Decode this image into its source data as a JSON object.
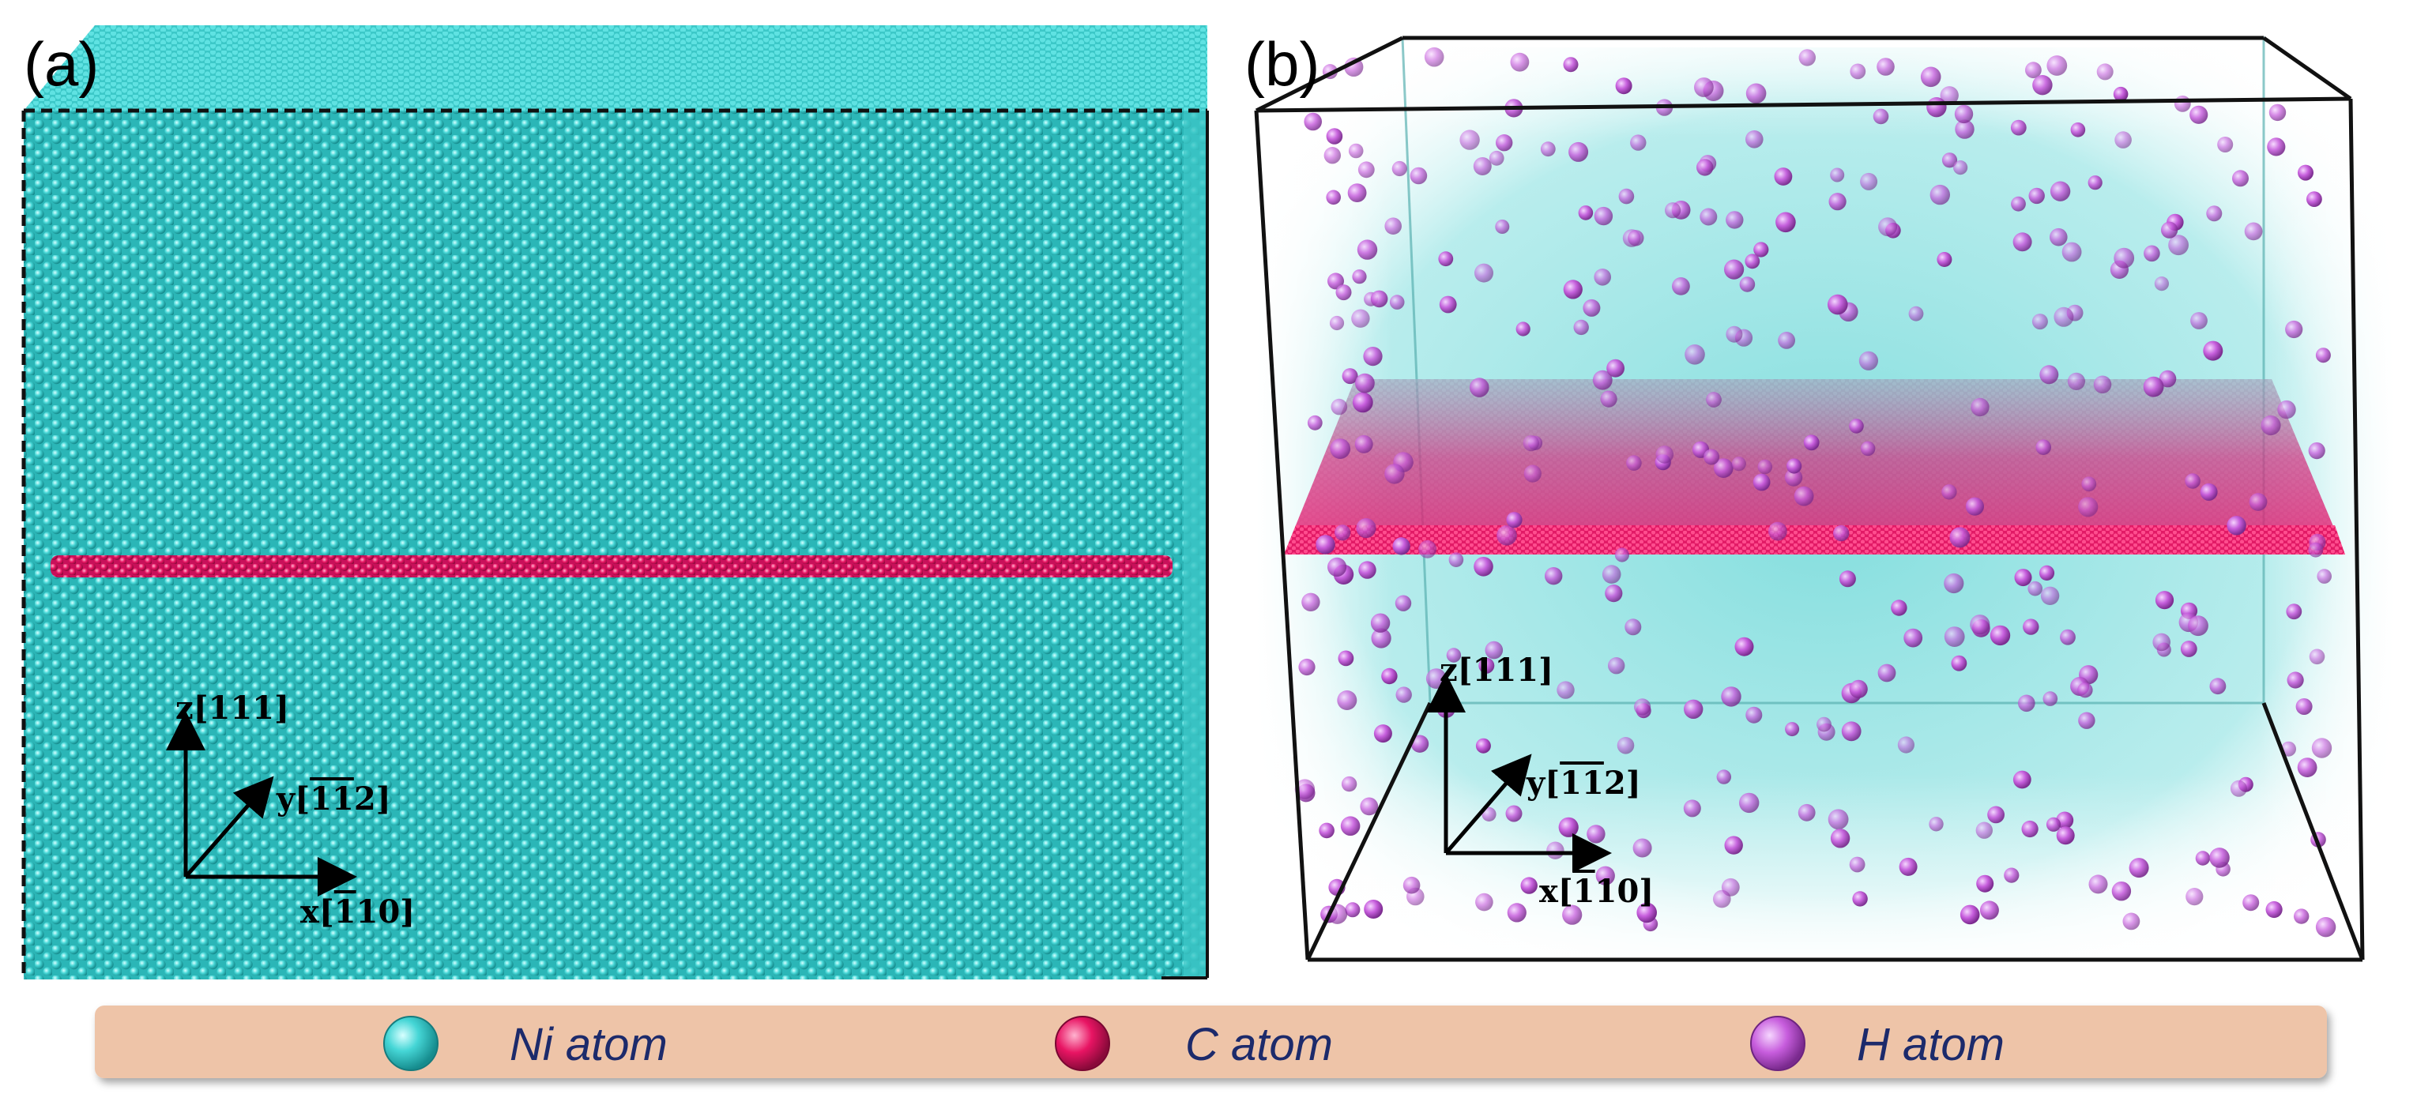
{
  "panels": {
    "a": {
      "label": "(a)",
      "axes": {
        "z": "z[111]",
        "y": "y[̄ 1̄1̄2]",
        "x": "x[̄ 110]"
      }
    },
    "b": {
      "label": "(b)",
      "axes": {
        "z": "z[111]",
        "y": "y[̄ 1̄1̄2]",
        "x": "x[̄ 110]"
      }
    }
  },
  "legend": {
    "items": [
      {
        "label": "Ni atom",
        "icon": "ni-atom-icon",
        "color": "#3fd3d3"
      },
      {
        "label": "C atom",
        "icon": "c-atom-icon",
        "color": "#e0145c"
      },
      {
        "label": "H atom",
        "icon": "h-atom-icon",
        "color": "#c95fe0"
      }
    ],
    "background": "#eec4a8"
  },
  "colors": {
    "ni": "#45d6d6",
    "ni_dark": "#1f9ea0",
    "c": "#e81463",
    "h": "#c75ddd"
  }
}
